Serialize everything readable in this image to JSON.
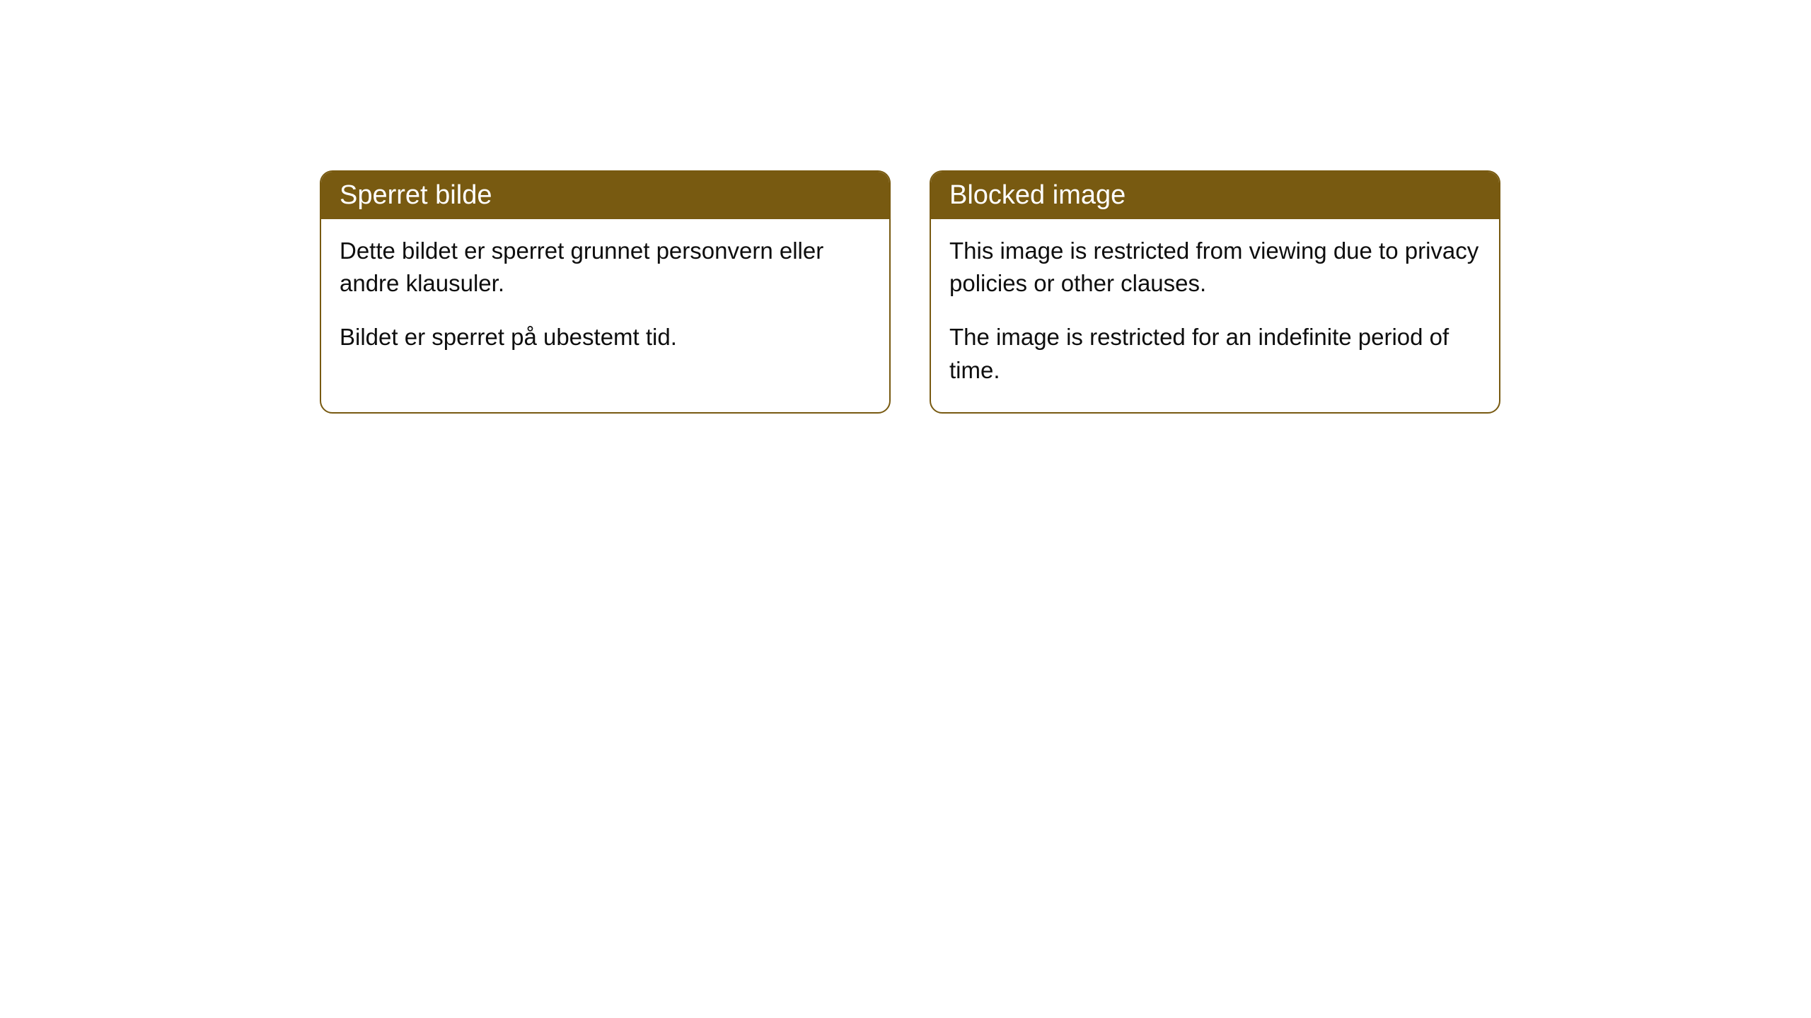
{
  "cards": [
    {
      "title": "Sperret bilde",
      "paragraph1": "Dette bildet er sperret grunnet personvern eller andre klausuler.",
      "paragraph2": "Bildet er sperret på ubestemt tid."
    },
    {
      "title": "Blocked image",
      "paragraph1": "This image is restricted from viewing due to privacy policies or other clauses.",
      "paragraph2": "The image is restricted for an indefinite period of time."
    }
  ],
  "style": {
    "header_bg_color": "#785a11",
    "header_text_color": "#ffffff",
    "border_color": "#785a11",
    "body_bg_color": "#ffffff",
    "body_text_color": "#0e0e0e",
    "border_radius": 18,
    "title_fontsize": 38,
    "body_fontsize": 33
  }
}
